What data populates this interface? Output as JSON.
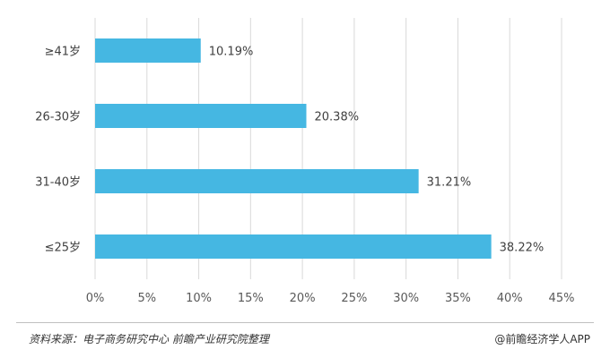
{
  "chart_data": {
    "type": "bar",
    "orientation": "horizontal",
    "categories": [
      "≥41岁",
      "26-30岁",
      "31-40岁",
      "≤25岁"
    ],
    "values": [
      10.19,
      20.38,
      31.21,
      38.22
    ],
    "value_labels": [
      "10.19%",
      "20.38%",
      "31.21%",
      "38.22%"
    ],
    "xlim": [
      0,
      45
    ],
    "xticks": [
      0,
      5,
      10,
      15,
      20,
      25,
      30,
      35,
      40,
      45
    ],
    "xtick_labels": [
      "0%",
      "5%",
      "10%",
      "15%",
      "20%",
      "25%",
      "30%",
      "35%",
      "40%",
      "45%"
    ],
    "grid": "vertical",
    "bar_color": "#45B7E2",
    "grid_color": "#D9D9D9"
  },
  "footer": {
    "source": "资料来源：电子商务研究中心 前瞻产业研究院整理",
    "credit": "@前瞻经济学人APP"
  }
}
